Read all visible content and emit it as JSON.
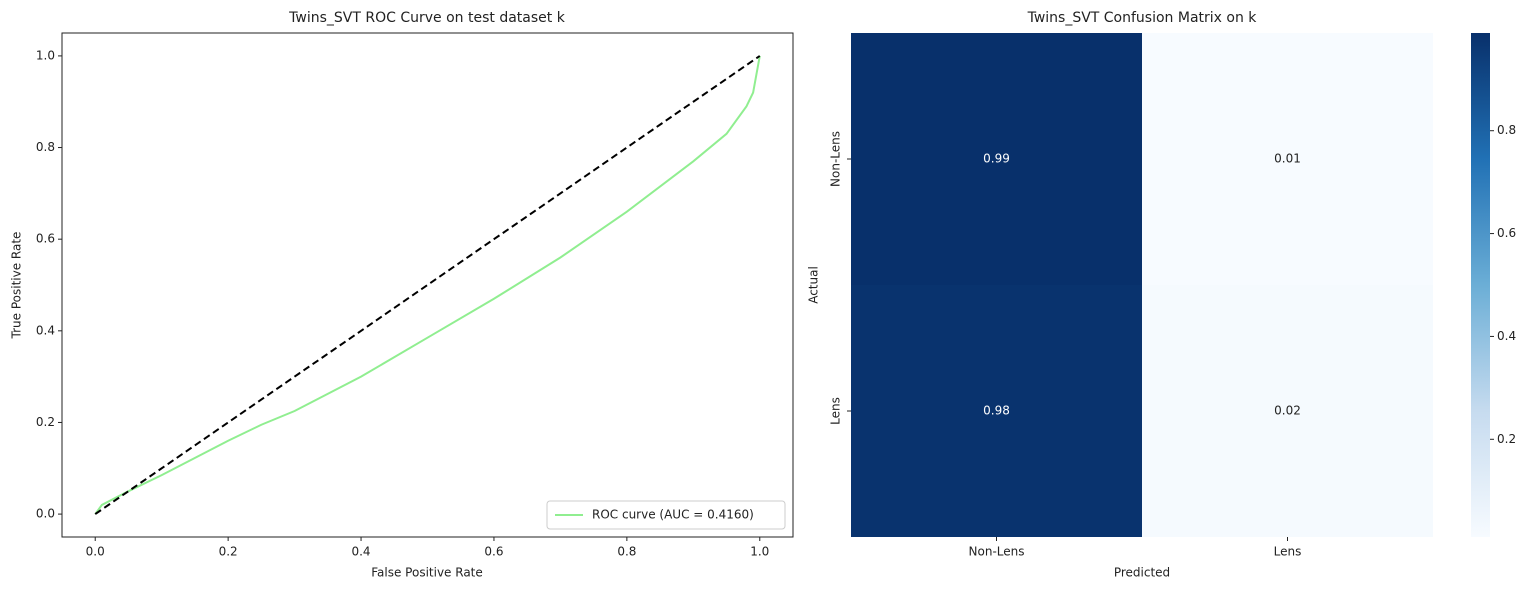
{
  "chart_data": [
    {
      "type": "line",
      "title": "Twins_SVT ROC Curve on test dataset k",
      "xlabel": "False Positive Rate",
      "ylabel": "True Positive Rate",
      "xlim": [
        -0.05,
        1.05
      ],
      "ylim": [
        -0.05,
        1.05
      ],
      "xticks": [
        {
          "value": 0,
          "label": "0.0"
        },
        0.2,
        0.4,
        0.6,
        0.8,
        {
          "value": 1,
          "label": "1.0"
        }
      ],
      "yticks": [
        {
          "value": 0,
          "label": "0.0"
        },
        0.2,
        0.4,
        0.6,
        0.8,
        {
          "value": 1,
          "label": "1.0"
        }
      ],
      "legend": "lower right",
      "series": [
        {
          "name": "ROC curve (AUC = 0.4160)",
          "color": "#90ee90",
          "linestyle": "solid",
          "x": [
            0,
            0.01,
            0.05,
            0.1,
            0.2,
            0.25,
            0.3,
            0.4,
            0.5,
            0.6,
            0.7,
            0.8,
            0.9,
            0.95,
            0.98,
            0.99,
            1.0
          ],
          "values": [
            0,
            0.02,
            0.05,
            0.085,
            0.16,
            0.195,
            0.225,
            0.3,
            0.385,
            0.47,
            0.56,
            0.66,
            0.77,
            0.83,
            0.89,
            0.92,
            1.0
          ]
        },
        {
          "color": "#000000",
          "linestyle": "dashed",
          "x": [
            0,
            1
          ],
          "values": [
            0,
            1
          ]
        }
      ]
    },
    {
      "type": "heatmap",
      "title": "Twins_SVT Confusion Matrix on k",
      "xlabel": "Predicted",
      "ylabel": "Actual",
      "x_categories": [
        "Non-Lens",
        "Lens"
      ],
      "y_categories": [
        "Non-Lens",
        "Lens"
      ],
      "values": [
        [
          0.99,
          0.01
        ],
        [
          0.98,
          0.02
        ]
      ],
      "zlim": [
        0.01,
        0.99
      ],
      "zticks": [
        0.2,
        0.4,
        0.6,
        0.8
      ],
      "colors": [
        "#f7fbff",
        "#c6dbef",
        "#6baed6",
        "#2171b5",
        "#08306b"
      ]
    }
  ]
}
